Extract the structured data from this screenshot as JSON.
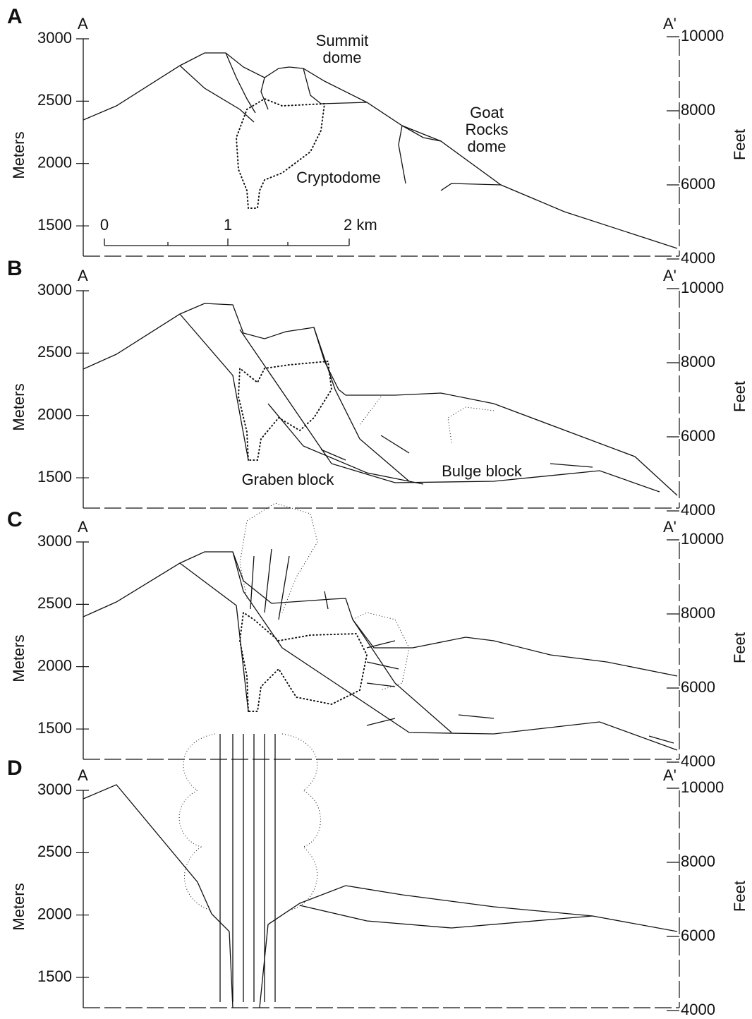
{
  "panels": [
    {
      "label": "A",
      "left_end": "A",
      "right_end": "A'",
      "left_axis": {
        "label": "Meters",
        "ticks": [
          3000,
          2500,
          2000,
          1500
        ]
      },
      "right_axis": {
        "label": "Feet",
        "ticks": [
          10000,
          8000,
          6000,
          4000
        ]
      },
      "annotations": [
        "Summit dome",
        "Goat Rocks dome",
        "Cryptodome"
      ],
      "scale_bar": [
        "0",
        "1",
        "2 km"
      ]
    },
    {
      "label": "B",
      "left_end": "A",
      "right_end": "A'",
      "left_axis": {
        "label": "Meters",
        "ticks": [
          3000,
          2500,
          2000,
          1500
        ]
      },
      "right_axis": {
        "label": "Feet",
        "ticks": [
          10000,
          8000,
          6000,
          4000
        ]
      },
      "annotations": [
        "Graben block",
        "Bulge block"
      ]
    },
    {
      "label": "C",
      "left_end": "A",
      "right_end": "A'",
      "left_axis": {
        "label": "Meters",
        "ticks": [
          3000,
          2500,
          2000,
          1500
        ]
      },
      "right_axis": {
        "label": "Feet",
        "ticks": [
          10000,
          8000,
          6000,
          4000
        ]
      }
    },
    {
      "label": "D",
      "left_end": "A",
      "right_end": "A'",
      "left_axis": {
        "label": "Meters",
        "ticks": [
          3000,
          2500,
          2000,
          1500
        ]
      },
      "right_axis": {
        "label": "Feet",
        "ticks": [
          10000,
          8000,
          6000,
          4000
        ]
      }
    }
  ]
}
